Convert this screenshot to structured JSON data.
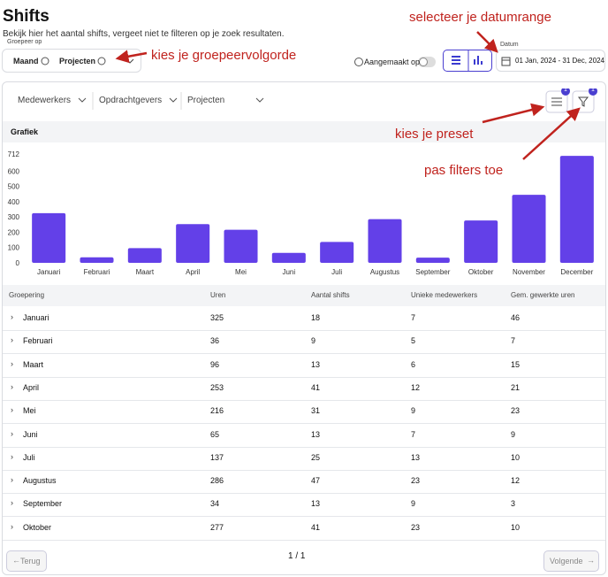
{
  "header": {
    "title": "Shifts",
    "subtitle": "Bekijk hier het aantal shifts, vergeet niet te filteren op je zoek resultaten.",
    "group_label": "Groepeer op",
    "group_chips": [
      "Maand",
      "Projecten"
    ],
    "created_toggle": "Aangemaakt op",
    "date_label": "Datum",
    "date_range": "01 Jan, 2024 - 31 Dec, 2024"
  },
  "filters": {
    "items": [
      "Medewerkers",
      "Opdrachtgevers",
      "Projecten"
    ],
    "badges": [
      "1",
      "1"
    ]
  },
  "annotations": [
    "selecteer je datumrange",
    "kies je groepeervolgorde",
    "kies je preset",
    "pas filters toe"
  ],
  "chart_section": "Grafiek",
  "chart_data": {
    "type": "bar",
    "categories": [
      "Januari",
      "Februari",
      "Maart",
      "April",
      "Mei",
      "Juni",
      "Juli",
      "Augustus",
      "September",
      "Oktober",
      "November",
      "December"
    ],
    "values": [
      325,
      36,
      96,
      253,
      216,
      65,
      137,
      286,
      34,
      277,
      445,
      700
    ],
    "color": "#6340e8",
    "ylim": [
      0,
      712
    ],
    "yticks": [
      0,
      100,
      200,
      300,
      400,
      500,
      600,
      712
    ],
    "grid": false
  },
  "table": {
    "columns": [
      "Groepering",
      "Uren",
      "Aantal shifts",
      "Unieke medewerkers",
      "Gem. gewerkte uren"
    ],
    "rows": [
      [
        "Januari",
        325,
        18,
        7,
        46
      ],
      [
        "Februari",
        36,
        9,
        5,
        7
      ],
      [
        "Maart",
        96,
        13,
        6,
        15
      ],
      [
        "April",
        253,
        41,
        12,
        21
      ],
      [
        "Mei",
        216,
        31,
        9,
        23
      ],
      [
        "Juni",
        65,
        13,
        7,
        9
      ],
      [
        "Juli",
        137,
        25,
        13,
        10
      ],
      [
        "Augustus",
        286,
        47,
        23,
        12
      ],
      [
        "September",
        34,
        13,
        9,
        3
      ],
      [
        "Oktober",
        277,
        41,
        23,
        10
      ]
    ]
  },
  "pagination": {
    "prev": "Terug",
    "page": "1 / 1",
    "next": "Volgende"
  }
}
